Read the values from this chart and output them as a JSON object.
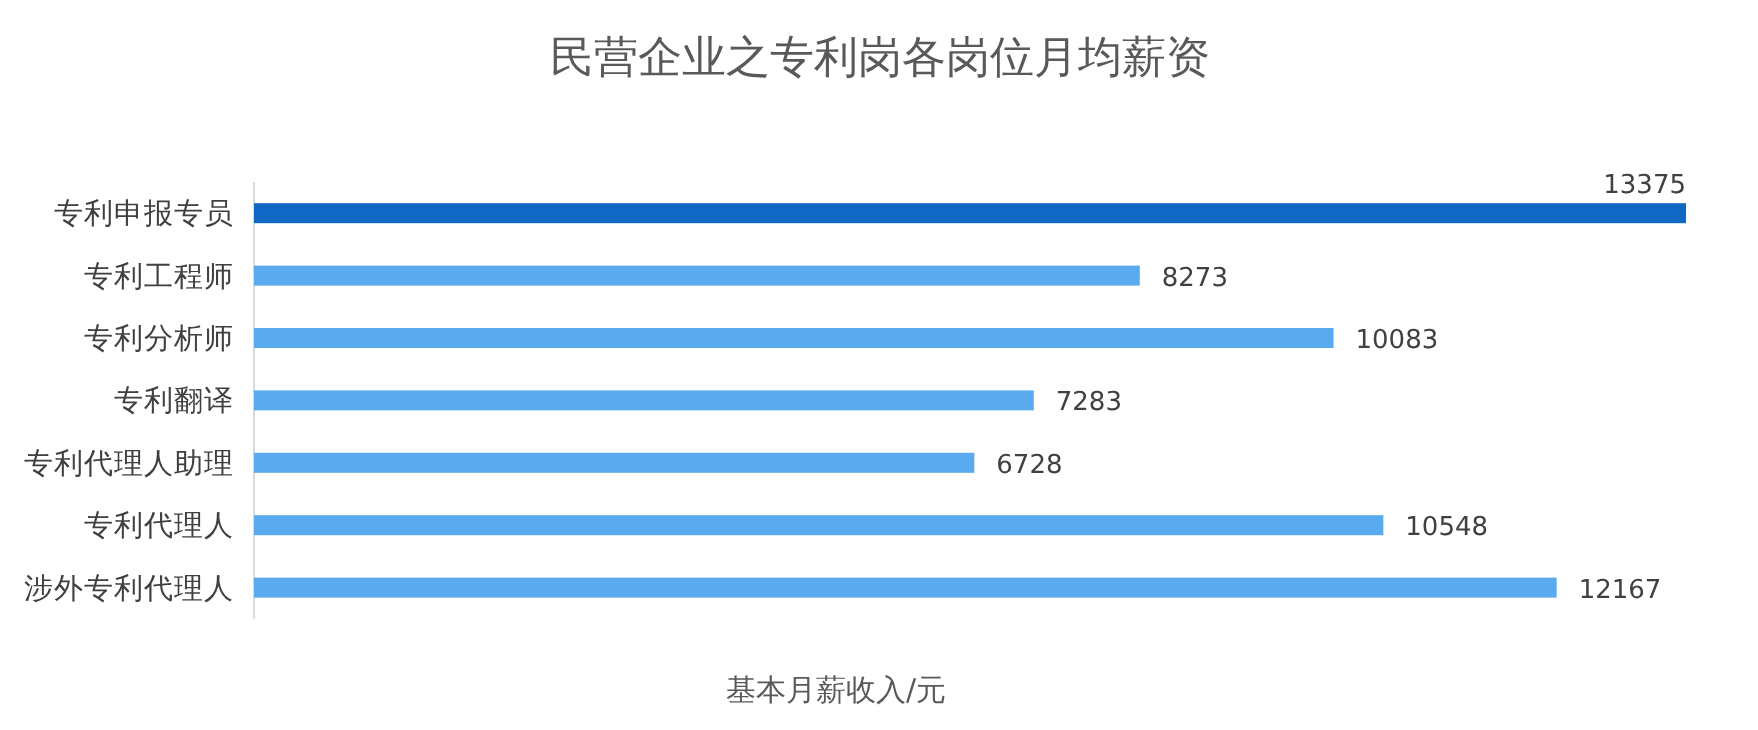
{
  "chart_data": {
    "type": "bar",
    "orientation": "horizontal",
    "title": "民营企业之专利岗各岗位月均薪资",
    "xlabel": "基本月薪收入/元",
    "categories": [
      "专利申报专员",
      "专利工程师",
      "专利分析师",
      "专利翻译",
      "专利代理人助理",
      "专利代理人",
      "涉外专利代理人"
    ],
    "values": [
      13375,
      8273,
      10083,
      7283,
      6728,
      10548,
      12167
    ],
    "colors": [
      "#1168c4",
      "#5aaaf0",
      "#5aaaf0",
      "#5aaaf0",
      "#5aaaf0",
      "#5aaaf0",
      "#5aaaf0"
    ],
    "data_labels": true
  }
}
